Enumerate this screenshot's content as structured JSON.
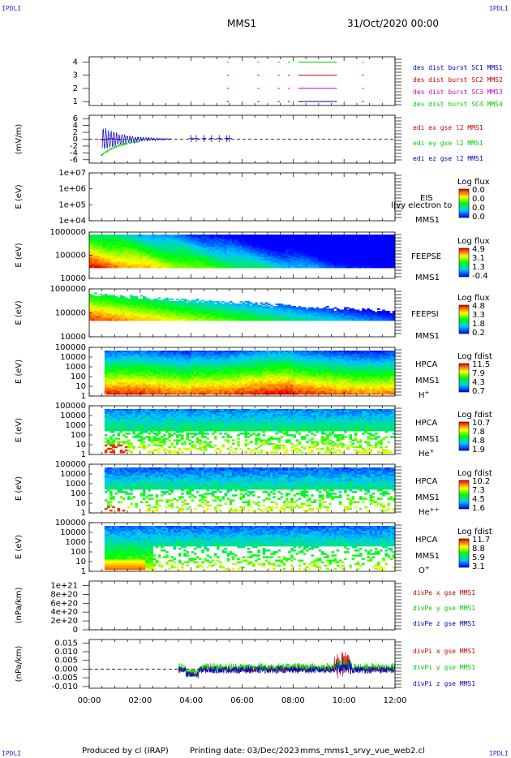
{
  "header": {
    "corner_labels": [
      "IPDLI",
      "IPDLI",
      "IPDLI",
      "IPDLI"
    ],
    "mission": "MMS1",
    "datetime": "31/Oct/2020 00:00"
  },
  "footer": {
    "produced": "Produced by cl (IRAP)",
    "printing_date": "Printing date: 03/Dec/2023",
    "filename": "mms_mms1_srvy_vue_web2.cl"
  },
  "time_axis": {
    "range_hours": [
      0,
      12
    ],
    "tick_labels": [
      "00:00",
      "02:00",
      "04:00",
      "06:00",
      "08:00",
      "10:00",
      "12:00"
    ]
  },
  "panels": [
    {
      "id": "des_burst",
      "type": "scatter",
      "ytick_labels": [
        "4",
        "3",
        "2",
        "1"
      ],
      "ylim": [
        0.7,
        4.4
      ],
      "legend": [
        {
          "name": "des dist burst SC1 MMS1",
          "color": "#0000cc"
        },
        {
          "name": "des dist burst SC2 MMS2",
          "color": "#cc0000"
        },
        {
          "name": "des dist burst SC3 MMS3",
          "color": "#cc00cc"
        },
        {
          "name": "des dist burst SC4 MMS4",
          "color": "#00cc00"
        }
      ],
      "burst_segments_hours": [
        [
          5.4,
          5.45
        ],
        [
          6.6,
          6.65
        ],
        [
          7.4,
          7.45
        ],
        [
          7.8,
          7.85
        ],
        [
          8.2,
          8.3
        ],
        [
          8.3,
          9.7
        ],
        [
          10.7,
          10.75
        ]
      ]
    },
    {
      "id": "edi_e",
      "type": "line",
      "ylabel": "(mV/m)",
      "ytick_labels": [
        "6",
        "4",
        "2",
        "0",
        "-2",
        "-4",
        "-6"
      ],
      "ylim": [
        -7,
        7
      ],
      "legend": [
        {
          "name": "edi ex gse l2 MMS1",
          "color": "#cc0000"
        },
        {
          "name": "edi ey gse l2 MMS1",
          "color": "#00cc00"
        },
        {
          "name": "edi ez gse l2 MMS1",
          "color": "#0000cc"
        }
      ]
    },
    {
      "id": "eis",
      "type": "heatmap",
      "ylabel": "E (eV)",
      "ytick_labels": [
        "1e+07",
        "1e+06",
        "1e+05",
        "1e+04"
      ],
      "instrument": "EIS",
      "overlay_text": "l|vy electron to",
      "spacecraft": "MMS1",
      "colorbar": {
        "title": "Log flux",
        "labels": [
          "0.0",
          "0.0",
          "0.0",
          "0.0"
        ]
      }
    },
    {
      "id": "feepse",
      "type": "heatmap",
      "ylabel": "E (eV)",
      "ytick_labels": [
        "1000000",
        "100000",
        "10000"
      ],
      "instrument": "FEEPSE",
      "spacecraft": "MMS1",
      "colorbar": {
        "title": "Log flux",
        "labels": [
          "4.9",
          "3.1",
          "1.3",
          "-0.4"
        ]
      }
    },
    {
      "id": "feepsi",
      "type": "heatmap",
      "ylabel": "E (eV)",
      "ytick_labels": [
        "1000000",
        "100000",
        "10000"
      ],
      "instrument": "FEEPSI",
      "spacecraft": "MMS1",
      "colorbar": {
        "title": "Log flux",
        "labels": [
          "4.8",
          "3.3",
          "1.8",
          "0.2"
        ]
      }
    },
    {
      "id": "hpca_h",
      "type": "heatmap",
      "ylabel": "E (eV)",
      "ytick_labels": [
        "100000",
        "10000",
        "1000",
        "100",
        "10",
        "1"
      ],
      "instrument": "HPCA",
      "spacecraft": "MMS1",
      "species": "H",
      "species_sup": "+",
      "colorbar": {
        "title": "Log fdist",
        "labels": [
          "11.5",
          "7.9",
          "4.3",
          "0.7"
        ]
      }
    },
    {
      "id": "hpca_he",
      "type": "heatmap",
      "ylabel": "E (eV)",
      "ytick_labels": [
        "100000",
        "10000",
        "1000",
        "100",
        "10",
        "1"
      ],
      "instrument": "HPCA",
      "spacecraft": "MMS1",
      "species": "He",
      "species_sup": "+",
      "colorbar": {
        "title": "Log fdist",
        "labels": [
          "10.7",
          "7.8",
          "4.8",
          "1.9"
        ]
      }
    },
    {
      "id": "hpca_he2",
      "type": "heatmap",
      "ylabel": "E (eV)",
      "ytick_labels": [
        "100000",
        "10000",
        "1000",
        "100",
        "10",
        "1"
      ],
      "instrument": "HPCA",
      "spacecraft": "MMS1",
      "species": "He",
      "species_sup": "++",
      "colorbar": {
        "title": "Log fdist",
        "labels": [
          "10.2",
          "7.3",
          "4.5",
          "1.6"
        ]
      }
    },
    {
      "id": "hpca_o",
      "type": "heatmap",
      "ylabel": "E (eV)",
      "ytick_labels": [
        "100000",
        "10000",
        "1000",
        "100",
        "10",
        "1"
      ],
      "instrument": "HPCA",
      "spacecraft": "MMS1",
      "species": "O",
      "species_sup": "+",
      "colorbar": {
        "title": "Log fdist",
        "labels": [
          "11.7",
          "8.8",
          "5.9",
          "3.1"
        ]
      }
    },
    {
      "id": "divpe",
      "type": "line",
      "ylabel": "(nPa/km)",
      "ytick_labels": [
        "1e+21",
        "8e+20",
        "6e+20",
        "4e+20",
        "2e+20",
        "0"
      ],
      "ylim": [
        0,
        1.1e+21
      ],
      "legend": [
        {
          "name": "divPe x gse MMS1",
          "color": "#cc0000"
        },
        {
          "name": "divPe y gse MMS1",
          "color": "#00cc00"
        },
        {
          "name": "divPe z gse MMS1",
          "color": "#0000cc"
        }
      ]
    },
    {
      "id": "divpi",
      "type": "line",
      "ylabel": "(nPa/km)",
      "ytick_labels": [
        "0.015",
        "0.010",
        "0.005",
        "0.000",
        "-0.005",
        "-0.010"
      ],
      "ylim": [
        -0.011,
        0.017
      ],
      "legend": [
        {
          "name": "divPi x gse MMS1",
          "color": "#cc0000"
        },
        {
          "name": "divPi y gse MMS1",
          "color": "#00cc00"
        },
        {
          "name": "divPi z gse MMS1",
          "color": "#0000cc"
        }
      ]
    }
  ],
  "chart_data": {
    "type": "heatmap",
    "title": "MMS1",
    "x_range_hours": [
      0,
      12
    ],
    "x_tick_labels": [
      "00:00",
      "02:00",
      "04:00",
      "06:00",
      "08:00",
      "10:00",
      "12:00"
    ],
    "colorbar_ranges": {
      "EIS": {
        "title": "Log flux",
        "labels": [
          "0.0",
          "0.0",
          "0.0",
          "0.0"
        ]
      },
      "FEEPSE": {
        "title": "Log flux",
        "labels": [
          "4.9",
          "3.1",
          "1.3",
          "-0.4"
        ]
      },
      "FEEPSI": {
        "title": "Log flux",
        "labels": [
          "4.8",
          "3.3",
          "1.8",
          "0.2"
        ]
      },
      "HPCA H+": {
        "title": "Log fdist",
        "labels": [
          "11.5",
          "7.9",
          "4.3",
          "0.7"
        ]
      },
      "HPCA He+": {
        "title": "Log fdist",
        "labels": [
          "10.7",
          "7.8",
          "4.8",
          "1.9"
        ]
      },
      "HPCA He++": {
        "title": "Log fdist",
        "labels": [
          "10.2",
          "7.3",
          "4.5",
          "1.6"
        ]
      },
      "HPCA O+": {
        "title": "Log fdist",
        "labels": [
          "11.7",
          "8.8",
          "5.9",
          "3.1"
        ]
      }
    },
    "line_panels": [
      {
        "name": "edi E gse l2 MMS1",
        "ylim": [
          -7,
          7
        ],
        "series": [
          "edi ex gse l2 MMS1",
          "edi ey gse l2 MMS1",
          "edi ez gse l2 MMS1"
        ]
      },
      {
        "name": "divPi gse MMS1",
        "ylim": [
          -0.011,
          0.017
        ],
        "series": [
          "divPi x gse MMS1",
          "divPi y gse MMS1",
          "divPi z gse MMS1"
        ]
      }
    ]
  }
}
